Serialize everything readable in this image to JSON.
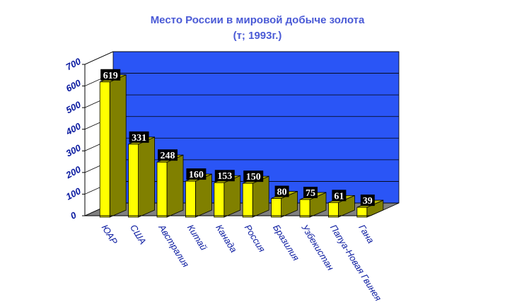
{
  "chart_data": {
    "type": "bar",
    "title": "Место России в мировой добыче золота",
    "subtitle": "(т; 1993г.)",
    "xlabel": "",
    "ylabel": "",
    "categories": [
      "ЮАР",
      "США",
      "Австралия",
      "Китай",
      "Канада",
      "Россия",
      "Бразилия",
      "Узбекистан",
      "Папуа-Новая Гвинея",
      "Гана"
    ],
    "values": [
      619,
      331,
      248,
      160,
      153,
      150,
      80,
      75,
      61,
      39
    ],
    "ylim": [
      0,
      700
    ],
    "yticks": [
      0,
      100,
      200,
      300,
      400,
      500,
      600,
      700
    ],
    "style": "3d-bar",
    "grid": true,
    "legend": "none",
    "colors": {
      "bar_front": "#ffff00",
      "bar_side": "#808000",
      "bar_top": "#b8b800",
      "wall": "#2a55f6",
      "floor": "#808080",
      "label_bg": "#000000",
      "label_text": "#ffffff",
      "title": "#4a5ad6",
      "axis_text": "#0a1aa0"
    }
  }
}
